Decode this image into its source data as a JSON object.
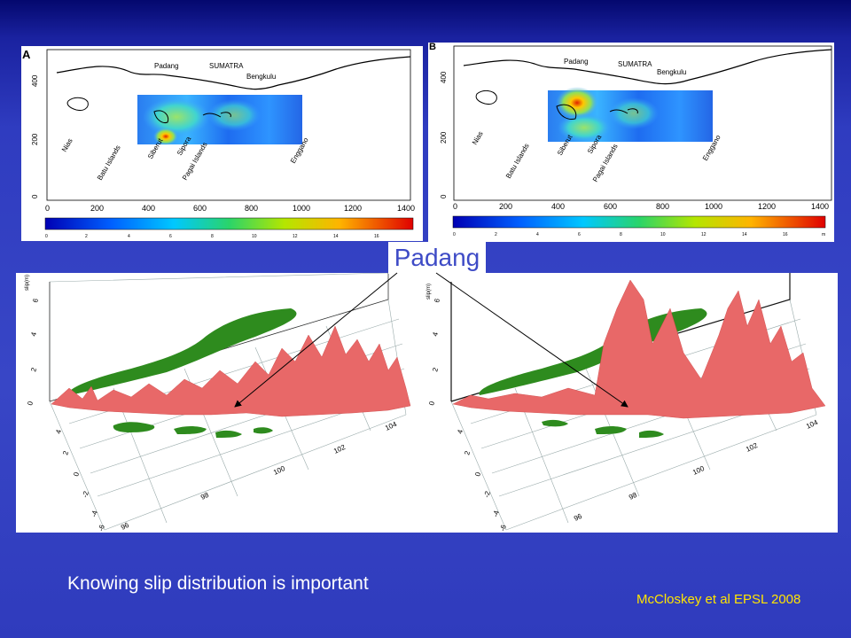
{
  "panel_a": {
    "letter": "A",
    "y_ticks": [
      "0",
      "200",
      "400"
    ],
    "x_ticks": [
      "0",
      "200",
      "400",
      "600",
      "800",
      "1000",
      "1200",
      "1400"
    ],
    "colorbar_ticks": [
      "0",
      "2",
      "4",
      "6",
      "8",
      "10",
      "12",
      "14",
      "16"
    ],
    "places": {
      "padang": "Padang",
      "sumatra": "SUMATRA",
      "bengkulu": "Bengkulu",
      "nias": "Nias",
      "batu": "Batu Islands",
      "siberut": "Siberut",
      "sipora": "Sipora",
      "pagai": "Pagai Islands",
      "enggano": "Enggano"
    }
  },
  "panel_b": {
    "letter": "B",
    "y_ticks": [
      "0",
      "200",
      "400"
    ],
    "x_ticks": [
      "0",
      "200",
      "400",
      "600",
      "800",
      "1000",
      "1200",
      "1400"
    ],
    "colorbar_ticks": [
      "0",
      "2",
      "4",
      "6",
      "8",
      "10",
      "12",
      "14",
      "16"
    ],
    "colorbar_unit": "m",
    "places": {
      "padang": "Padang",
      "sumatra": "SUMATRA",
      "bengkulu": "Bengkulu",
      "nias": "Nias",
      "batu": "Batu Islands",
      "siberut": "Siberut",
      "sipora": "Sipora",
      "pagai": "Pagai Islands",
      "enggano": "Enggano"
    }
  },
  "view_3d": {
    "z_label": "slip(m)",
    "z_ticks": [
      "0",
      "2",
      "4",
      "6"
    ],
    "lat_ticks": [
      "-6",
      "-4",
      "-2",
      "0",
      "2",
      "4"
    ],
    "lon_ticks": [
      "96",
      "98",
      "100",
      "102",
      "104"
    ]
  },
  "colors": {
    "land": "#2e8b1e",
    "slip": "#e86868",
    "background": "#3441c2",
    "caption": "#ffffff",
    "citation": "#ffe400"
  },
  "padang_label": "Padang",
  "caption": "Knowing slip distribution is important",
  "citation": "McCloskey et al EPSL 2008"
}
